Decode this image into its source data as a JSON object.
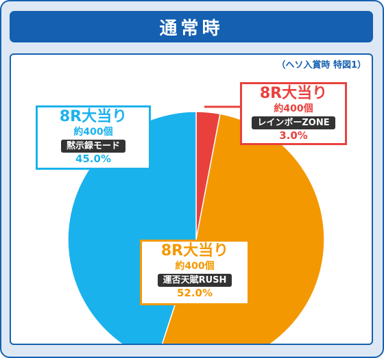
{
  "header": {
    "title": "通常時"
  },
  "chart_data": {
    "type": "pie",
    "note": "（ヘソ入賞時 特図1）",
    "slices": [
      {
        "title": "8R大当り",
        "prize": "約400個",
        "name": "レインボーZONE",
        "value": 3.0,
        "label": "3.0%",
        "color": "#e8413d"
      },
      {
        "title": "8R大当り",
        "prize": "約400個",
        "name": "運否天賦RUSH",
        "value": 52.0,
        "label": "52.0%",
        "color": "#f39800"
      },
      {
        "title": "8R大当り",
        "prize": "約400個",
        "name": "黙示録モード",
        "value": 45.0,
        "label": "45.0%",
        "color": "#1ab2ec"
      }
    ]
  }
}
